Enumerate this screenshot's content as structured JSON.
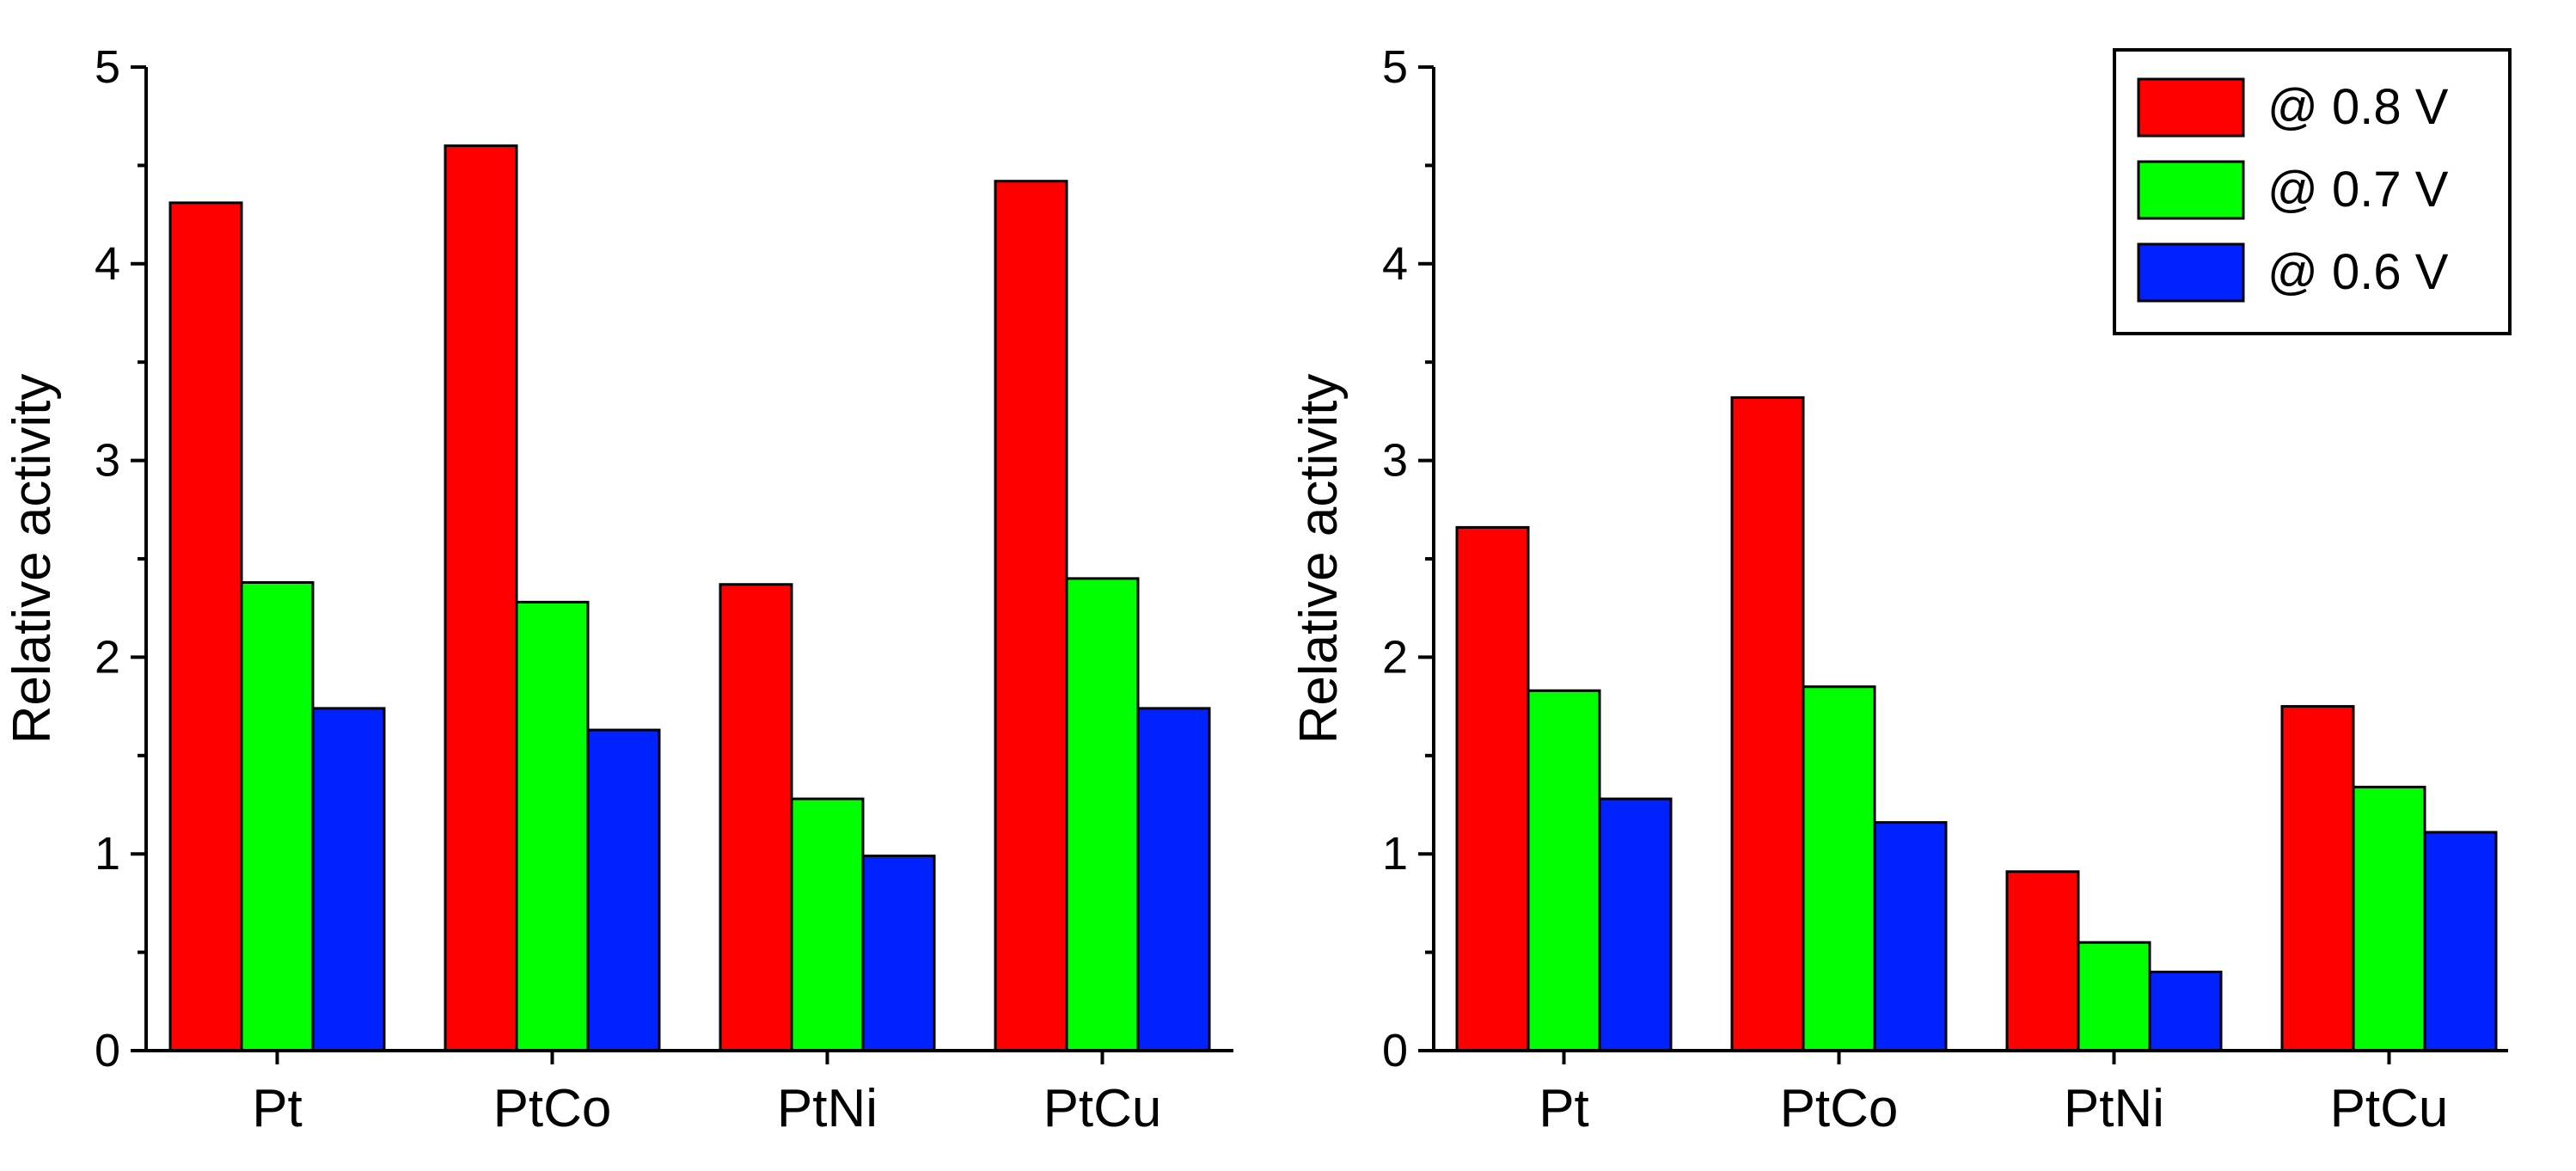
{
  "chart_data": [
    {
      "type": "bar",
      "categories": [
        "Pt",
        "PtCo",
        "PtNi",
        "PtCu"
      ],
      "series": [
        {
          "name": "@ 0.8 V",
          "values": [
            4.31,
            4.6,
            2.37,
            4.42
          ]
        },
        {
          "name": "@ 0.7 V",
          "values": [
            2.38,
            2.28,
            1.28,
            2.4
          ]
        },
        {
          "name": "@ 0.6 V",
          "values": [
            1.74,
            1.63,
            0.99,
            1.74
          ]
        }
      ],
      "ylabel": "Relative activity",
      "ylim": [
        0,
        5
      ],
      "yticks": [
        "0",
        "1",
        "2",
        "3",
        "4",
        "5"
      ],
      "legend": false,
      "grid": false
    },
    {
      "type": "bar",
      "categories": [
        "Pt",
        "PtCo",
        "PtNi",
        "PtCu"
      ],
      "series": [
        {
          "name": "@ 0.8 V",
          "values": [
            2.66,
            3.32,
            0.91,
            1.75
          ]
        },
        {
          "name": "@ 0.7 V",
          "values": [
            1.83,
            1.85,
            0.55,
            1.34
          ]
        },
        {
          "name": "@ 0.6 V",
          "values": [
            1.28,
            1.16,
            0.4,
            1.11
          ]
        }
      ],
      "ylabel": "Relative activity",
      "ylim": [
        0,
        5
      ],
      "yticks": [
        "0",
        "1",
        "2",
        "3",
        "4",
        "5"
      ],
      "legend": true,
      "legend_position": "top-right",
      "grid": false
    }
  ],
  "colors": {
    "series": [
      "#ff0000",
      "#00ff00",
      "#0022ff"
    ],
    "axis": "#000000"
  }
}
